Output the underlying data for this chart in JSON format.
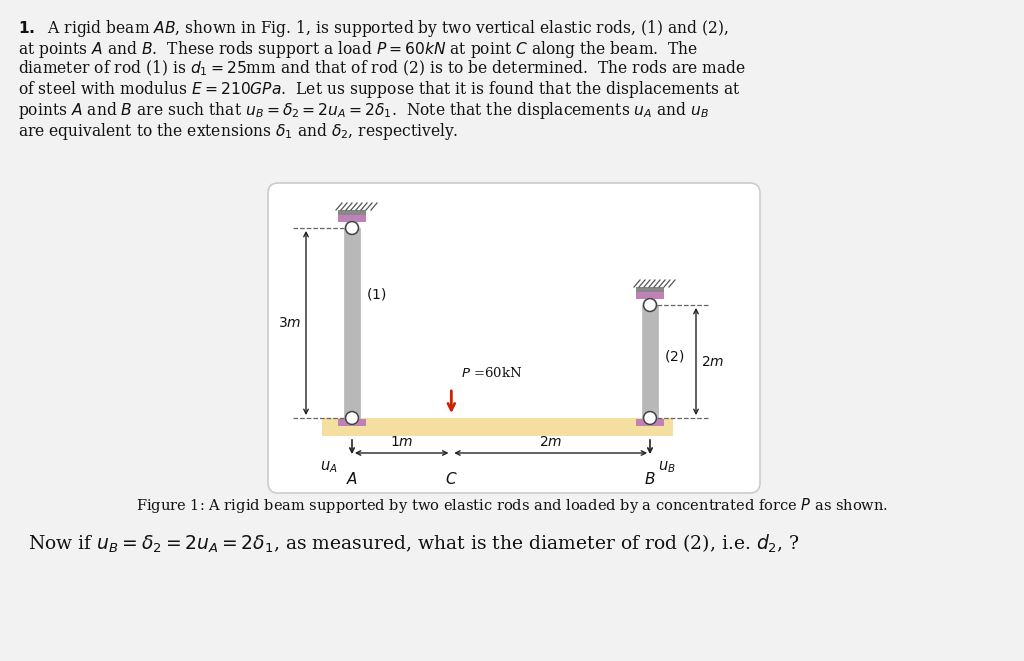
{
  "page_bg": "#f2f2f2",
  "box_bg": "#ffffff",
  "box_edge": "#cccccc",
  "beam_color": "#f5dfa0",
  "beam_edge": "#aaa880",
  "rod_color": "#b8b8b8",
  "rod_edge": "#888888",
  "pin_fill": "#ffffff",
  "pin_edge": "#444444",
  "cap_color": "#c080b8",
  "ceil_color": "#888888",
  "hatch_color": "#555555",
  "force_color": "#cc2200",
  "dim_color": "#222222",
  "text_color": "#111111",
  "title_lines": [
    "\\textbf{1.}  A rigid beam $AB$, shown in Fig. 1, is supported by two vertical elastic rods, (1) and (2),",
    "at points $A$ and $B$.  These rods support a load $P = 60kN$ at point $C$ along the beam.  The",
    "diameter of rod (1) is $d_1 = 25$mm and that of rod (2) is to be determined.  The rods are made",
    "of steel with modulus $E = 210GPa$.  Let us suppose that it is found that the displacements at",
    "points $A$ and $B$ are such that $u_B = \\delta_2 = 2u_A = 2\\delta_1$.  Note that the displacements $u_A$ and $u_B$",
    "are equivalent to the extensions $\\delta_1$ and $\\delta_2$, respectively."
  ],
  "caption": "Figure 1: A rigid beam supported by two elastic rods and loaded by a concentrated force $P$ as shown.",
  "question": "Now if $u_B = \\delta_2 = 2u_A = 2\\delta_1$, as measured, what is the diameter of rod (2), i.e. $d_2$, ?"
}
